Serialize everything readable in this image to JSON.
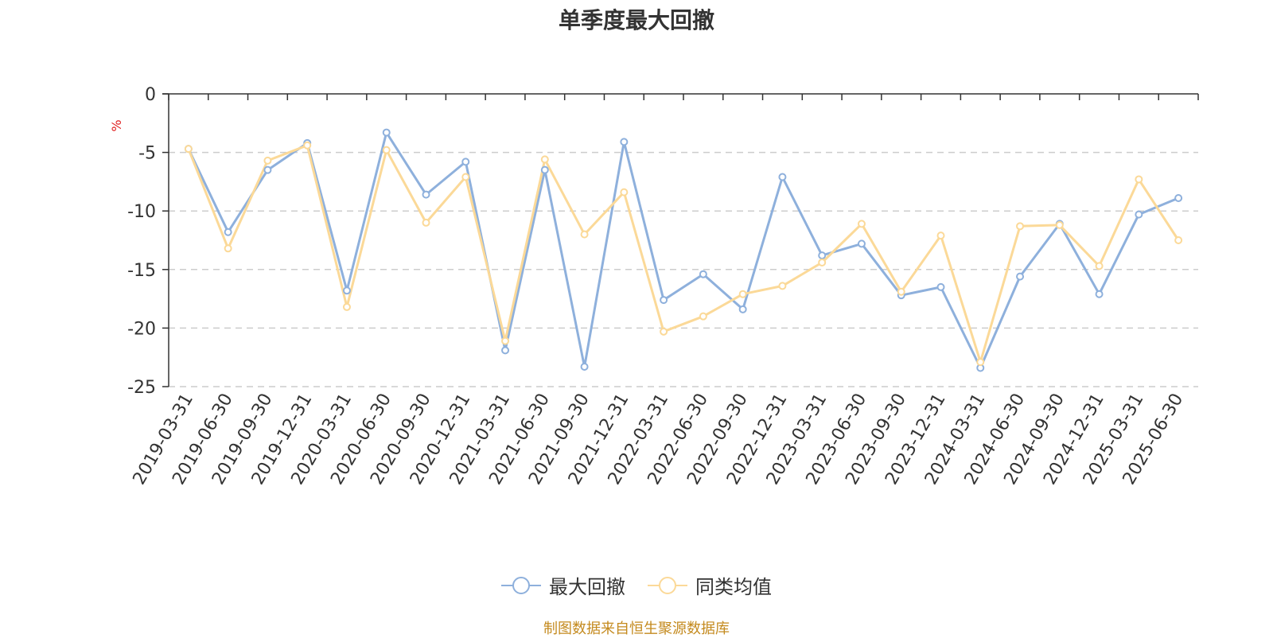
{
  "chart_data": {
    "type": "line",
    "title": "单季度最大回撤",
    "ylabel": "%",
    "ylim": [
      -25,
      0
    ],
    "yticks": [
      0,
      -5,
      -10,
      -15,
      -20,
      -25
    ],
    "grid": true,
    "legend_position": "bottom",
    "categories": [
      "2019-03-31",
      "2019-06-30",
      "2019-09-30",
      "2019-12-31",
      "2020-03-31",
      "2020-06-30",
      "2020-09-30",
      "2020-12-31",
      "2021-03-31",
      "2021-06-30",
      "2021-09-30",
      "2021-12-31",
      "2022-03-31",
      "2022-06-30",
      "2022-09-30",
      "2022-12-31",
      "2023-03-31",
      "2023-06-30",
      "2023-09-30",
      "2023-12-31",
      "2024-03-31",
      "2024-06-30",
      "2024-09-30",
      "2024-12-31",
      "2025-03-31",
      "2025-06-30"
    ],
    "series": [
      {
        "name": "最大回撤",
        "color": "#8eb0dc",
        "values": [
          -4.7,
          -11.8,
          -6.5,
          -4.2,
          -16.8,
          -3.3,
          -8.6,
          -5.8,
          -21.9,
          -6.5,
          -23.3,
          -4.1,
          -17.6,
          -15.4,
          -18.4,
          -7.1,
          -13.8,
          -12.8,
          -17.2,
          -16.5,
          -23.4,
          -15.6,
          -11.1,
          -17.1,
          -10.3,
          -8.9
        ]
      },
      {
        "name": "同类均值",
        "color": "#fbd998",
        "values": [
          -4.7,
          -13.2,
          -5.7,
          -4.4,
          -18.2,
          -4.8,
          -11.0,
          -7.1,
          -21.1,
          -5.6,
          -12.0,
          -8.4,
          -20.3,
          -19.0,
          -17.1,
          -16.4,
          -14.4,
          -11.1,
          -16.9,
          -12.1,
          -22.9,
          -11.3,
          -11.2,
          -14.7,
          -7.3,
          -12.5
        ]
      }
    ]
  },
  "source_note": "制图数据来自恒生聚源数据库"
}
